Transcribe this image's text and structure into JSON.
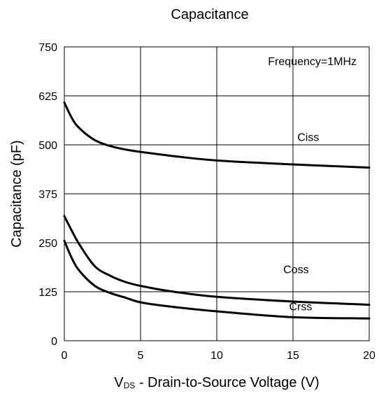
{
  "chart_data": {
    "type": "line",
    "title": "Capacitance",
    "ylabel": "Capacitance (pF)",
    "xlabel_main": "V",
    "xlabel_sub": "DS",
    "xlabel_rest": " - Drain-to-Source Voltage (V)",
    "annotation": "Frequency=1MHz",
    "xlim": [
      0,
      20
    ],
    "ylim": [
      0,
      750
    ],
    "xticks": [
      0,
      5,
      10,
      15,
      20
    ],
    "yticks": [
      0,
      125,
      250,
      375,
      500,
      625,
      750
    ],
    "grid": true,
    "series": [
      {
        "name": "Ciss",
        "x": [
          0,
          0.5,
          1,
          2,
          3,
          4,
          5,
          7,
          10,
          15,
          20
        ],
        "values": [
          608,
          568,
          542,
          512,
          497,
          488,
          482,
          472,
          460,
          450,
          442
        ]
      },
      {
        "name": "Coss",
        "x": [
          0,
          0.5,
          1,
          2,
          3,
          4,
          5,
          7,
          10,
          15,
          20
        ],
        "values": [
          318,
          280,
          245,
          190,
          166,
          150,
          140,
          126,
          112,
          100,
          92
        ]
      },
      {
        "name": "Crss",
        "x": [
          0,
          0.5,
          1,
          2,
          3,
          4,
          5,
          7,
          10,
          15,
          20
        ],
        "values": [
          255,
          210,
          178,
          140,
          122,
          110,
          98,
          87,
          75,
          60,
          57
        ]
      }
    ]
  }
}
